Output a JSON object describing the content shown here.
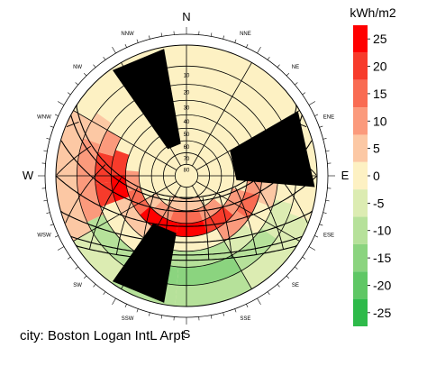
{
  "caption": "city: Boston Logan IntL Arpt",
  "colors": {
    "red": [
      "#ff0000",
      "#f73b2b",
      "#f96b52",
      "#fb9a7c",
      "#fcc8a4"
    ],
    "neutral": "#fdf1c3",
    "green": [
      "#dcecb2",
      "#b6e19a",
      "#8bd47f",
      "#5fc765",
      "#2eba4a",
      "#00c832"
    ]
  },
  "chart_data": {
    "type": "heatmap",
    "projection": "stereographic sun-path diagram",
    "legend": {
      "title": "kWh/m2",
      "ticks": [
        "25",
        "20",
        "15",
        "10",
        "5",
        "0",
        "-5",
        "-10",
        "-15",
        "-20",
        "-25"
      ],
      "range": [
        -27.5,
        27.5
      ]
    },
    "compass": {
      "cardinal": [
        "N",
        "E",
        "S",
        "W"
      ],
      "intercardinal": [
        "NNE",
        "NE",
        "ENE",
        "ESE",
        "SE",
        "SSE",
        "SSW",
        "SW",
        "WSW",
        "WNW",
        "NW",
        "NNW"
      ]
    },
    "altitude_labels": [
      "10",
      "20",
      "30",
      "40",
      "50",
      "60",
      "70",
      "80"
    ],
    "grid": true,
    "obstructions_azimuth_deg": [
      [
        325,
        350
      ],
      [
        60,
        95
      ],
      [
        190,
        215
      ]
    ],
    "bands": [
      {
        "alt": [
          0,
          10
        ],
        "segments": [
          [
            240,
            275,
            5
          ],
          [
            275,
            300,
            5
          ],
          [
            110,
            130,
            -5
          ],
          [
            130,
            150,
            -5
          ],
          [
            150,
            185,
            -10
          ],
          [
            185,
            215,
            -10
          ],
          [
            215,
            240,
            -5
          ]
        ]
      },
      {
        "alt": [
          10,
          20
        ],
        "segments": [
          [
            245,
            270,
            10
          ],
          [
            270,
            290,
            10
          ],
          [
            290,
            305,
            5
          ],
          [
            105,
            125,
            -5
          ],
          [
            125,
            150,
            -10
          ],
          [
            150,
            185,
            -15
          ],
          [
            185,
            215,
            -15
          ],
          [
            215,
            245,
            -10
          ]
        ]
      },
      {
        "alt": [
          20,
          30
        ],
        "segments": [
          [
            250,
            265,
            20
          ],
          [
            265,
            285,
            20
          ],
          [
            285,
            300,
            10
          ],
          [
            95,
            110,
            5
          ],
          [
            110,
            130,
            0
          ],
          [
            130,
            150,
            -5
          ],
          [
            150,
            185,
            -10
          ],
          [
            185,
            215,
            -10
          ],
          [
            215,
            250,
            0
          ]
        ]
      },
      {
        "alt": [
          30,
          40
        ],
        "segments": [
          [
            250,
            270,
            25
          ],
          [
            270,
            290,
            20
          ],
          [
            95,
            105,
            10
          ],
          [
            105,
            125,
            15
          ],
          [
            125,
            150,
            10
          ],
          [
            150,
            185,
            0
          ],
          [
            185,
            215,
            0
          ],
          [
            215,
            250,
            5
          ]
        ]
      },
      {
        "alt": [
          40,
          50
        ],
        "segments": [
          [
            230,
            255,
            15
          ],
          [
            255,
            275,
            10
          ],
          [
            105,
            130,
            10
          ],
          [
            130,
            160,
            20
          ],
          [
            160,
            190,
            25
          ],
          [
            190,
            230,
            25
          ]
        ]
      },
      {
        "alt": [
          50,
          60
        ],
        "segments": [
          [
            200,
            225,
            10
          ],
          [
            225,
            240,
            5
          ],
          [
            130,
            160,
            10
          ],
          [
            160,
            200,
            15
          ]
        ]
      },
      {
        "alt": [
          60,
          70
        ],
        "segments": [
          [
            150,
            190,
            5
          ],
          [
            190,
            215,
            5
          ]
        ]
      }
    ]
  }
}
